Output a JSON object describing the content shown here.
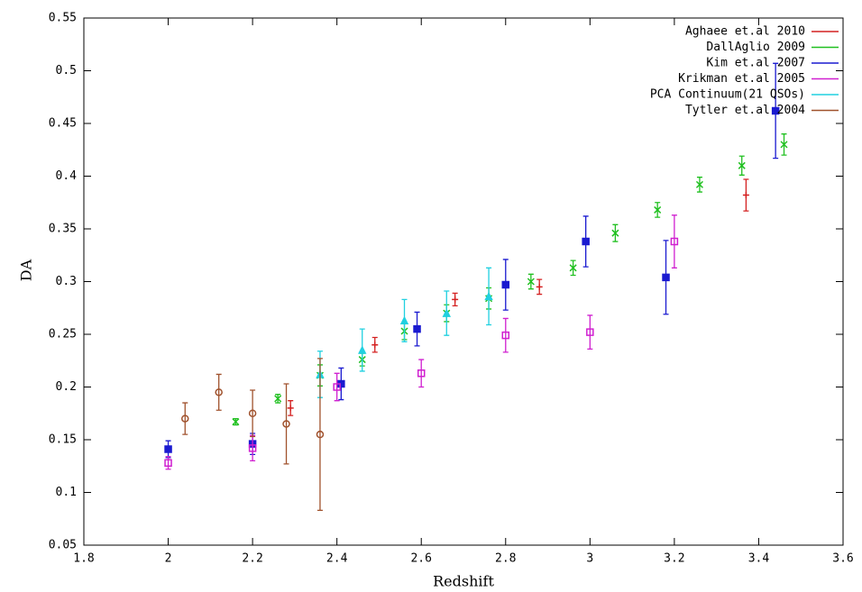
{
  "chart_data": {
    "type": "scatter",
    "x_label": "Redshift",
    "y_label": "DA",
    "xlim": [
      1.8,
      3.6
    ],
    "xticks": [
      1.8,
      2,
      2.2,
      2.4,
      2.6,
      2.8,
      3,
      3.2,
      3.4,
      3.6
    ],
    "ylim": [
      0.05,
      0.55
    ],
    "yticks": [
      0.05,
      0.1,
      0.15,
      0.2,
      0.25,
      0.3,
      0.35,
      0.4,
      0.45,
      0.5,
      0.55
    ],
    "grid": false,
    "legend": "top-right",
    "series": [
      {
        "name": "Aghaee et.al 2010",
        "color": "#d42020",
        "marker": "plus",
        "x": [
          2.29,
          2.49,
          2.68,
          2.88,
          3.37
        ],
        "values": [
          0.18,
          0.24,
          0.283,
          0.295,
          0.382
        ],
        "errors": [
          0.007,
          0.007,
          0.006,
          0.007,
          0.015
        ]
      },
      {
        "name": "DallAglio 2009",
        "color": "#20c020",
        "marker": "cross",
        "x": [
          2.16,
          2.26,
          2.36,
          2.46,
          2.56,
          2.66,
          2.76,
          2.86,
          2.96,
          3.06,
          3.16,
          3.26,
          3.36,
          3.46
        ],
        "values": [
          0.167,
          0.189,
          0.211,
          0.226,
          0.253,
          0.27,
          0.284,
          0.3,
          0.313,
          0.346,
          0.368,
          0.392,
          0.41,
          0.43
        ],
        "errors": [
          0.003,
          0.004,
          0.01,
          0.006,
          0.008,
          0.008,
          0.01,
          0.007,
          0.007,
          0.008,
          0.007,
          0.007,
          0.009,
          0.01
        ]
      },
      {
        "name": "Kim et.al 2007",
        "color": "#1a1ad0",
        "marker": "star",
        "x": [
          2.0,
          2.2,
          2.41,
          2.59,
          2.8,
          2.99,
          3.18,
          3.44
        ],
        "values": [
          0.141,
          0.146,
          0.203,
          0.255,
          0.297,
          0.338,
          0.304,
          0.462
        ],
        "errors": [
          0.008,
          0.01,
          0.015,
          0.016,
          0.024,
          0.024,
          0.035,
          0.045
        ]
      },
      {
        "name": "Krikman et.al 2005",
        "color": "#d020d0",
        "marker": "square",
        "x": [
          2.0,
          2.2,
          2.4,
          2.6,
          2.8,
          3.0,
          3.2
        ],
        "values": [
          0.128,
          0.142,
          0.2,
          0.213,
          0.249,
          0.252,
          0.338
        ],
        "errors": [
          0.006,
          0.012,
          0.013,
          0.013,
          0.016,
          0.016,
          0.025
        ]
      },
      {
        "name": "PCA Continuum(21 QSOs)",
        "color": "#20d0e0",
        "marker": "triangle",
        "x": [
          2.36,
          2.46,
          2.56,
          2.66,
          2.76
        ],
        "values": [
          0.212,
          0.235,
          0.263,
          0.27,
          0.286
        ],
        "errors": [
          0.022,
          0.02,
          0.02,
          0.021,
          0.027
        ]
      },
      {
        "name": "Tytler et.al 2004",
        "color": "#a0522d",
        "marker": "circle",
        "x": [
          2.04,
          2.12,
          2.2,
          2.28,
          2.36
        ],
        "values": [
          0.17,
          0.195,
          0.175,
          0.165,
          0.155
        ],
        "errors": [
          0.015,
          0.017,
          0.022,
          0.038,
          0.072
        ]
      }
    ]
  }
}
